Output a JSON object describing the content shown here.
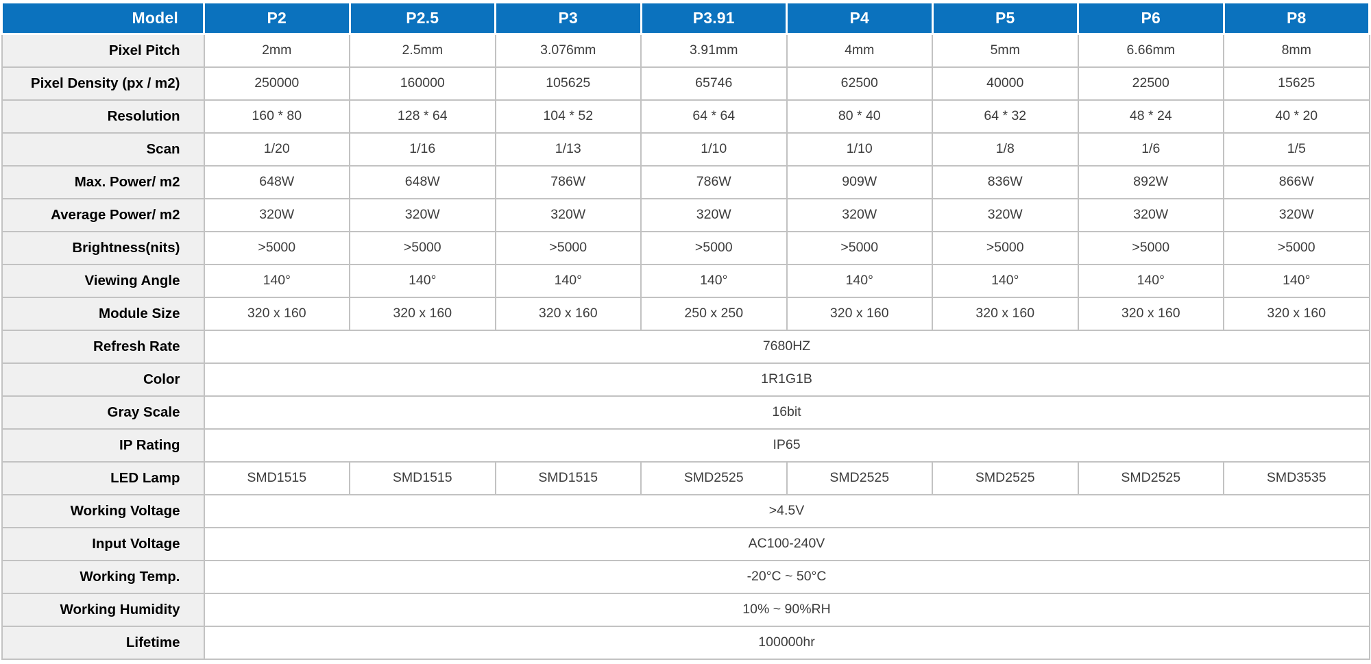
{
  "colors": {
    "header_bg": "#0b72be",
    "header_text": "#ffffff",
    "label_bg": "#f0f0f0",
    "grid_line": "#c2c2c2",
    "label_text": "#000000",
    "value_text": "#3d3d3d",
    "page_bg": "#ffffff"
  },
  "table": {
    "header": {
      "label": "Model",
      "models": [
        "P2",
        "P2.5",
        "P3",
        "P3.91",
        "P4",
        "P5",
        "P6",
        "P8"
      ]
    },
    "rows": [
      {
        "label": "Pixel Pitch",
        "values": [
          "2mm",
          "2.5mm",
          "3.076mm",
          "3.91mm",
          "4mm",
          "5mm",
          "6.66mm",
          "8mm"
        ]
      },
      {
        "label": "Pixel Density (px / m2)",
        "values": [
          "250000",
          "160000",
          "105625",
          "65746",
          "62500",
          "40000",
          "22500",
          "15625"
        ]
      },
      {
        "label": "Resolution",
        "values": [
          "160 * 80",
          "128 * 64",
          "104 * 52",
          "64 * 64",
          "80 * 40",
          "64 * 32",
          "48 * 24",
          "40 * 20"
        ]
      },
      {
        "label": "Scan",
        "values": [
          "1/20",
          "1/16",
          "1/13",
          "1/10",
          "1/10",
          "1/8",
          "1/6",
          "1/5"
        ]
      },
      {
        "label": "Max. Power/ m2",
        "values": [
          "648W",
          "648W",
          "786W",
          "786W",
          "909W",
          "836W",
          "892W",
          "866W"
        ]
      },
      {
        "label": "Average Power/ m2",
        "values": [
          "320W",
          "320W",
          "320W",
          "320W",
          "320W",
          "320W",
          "320W",
          "320W"
        ]
      },
      {
        "label": "Brightness(nits)",
        "values": [
          ">5000",
          ">5000",
          ">5000",
          ">5000",
          ">5000",
          ">5000",
          ">5000",
          ">5000"
        ]
      },
      {
        "label": "Viewing Angle",
        "values": [
          "140°",
          "140°",
          "140°",
          "140°",
          "140°",
          "140°",
          "140°",
          "140°"
        ]
      },
      {
        "label": "Module Size",
        "values": [
          "320 x 160",
          "320 x 160",
          "320 x 160",
          "250 x 250",
          "320 x 160",
          "320 x 160",
          "320 x 160",
          "320 x 160"
        ]
      },
      {
        "label": "Refresh Rate",
        "span": true,
        "value": "7680HZ"
      },
      {
        "label": "Color",
        "span": true,
        "value": "1R1G1B"
      },
      {
        "label": "Gray Scale",
        "span": true,
        "value": "16bit"
      },
      {
        "label": "IP Rating",
        "span": true,
        "value": "IP65"
      },
      {
        "label": "LED Lamp",
        "values": [
          "SMD1515",
          "SMD1515",
          "SMD1515",
          "SMD2525",
          "SMD2525",
          "SMD2525",
          "SMD2525",
          "SMD3535"
        ]
      },
      {
        "label": "Working Voltage",
        "span": true,
        "value": ">4.5V"
      },
      {
        "label": "Input Voltage",
        "span": true,
        "value": "AC100-240V"
      },
      {
        "label": "Working Temp.",
        "span": true,
        "value": "-20°C ~ 50°C"
      },
      {
        "label": "Working Humidity",
        "span": true,
        "value": "10% ~ 90%RH"
      },
      {
        "label": "Lifetime",
        "span": true,
        "value": "100000hr"
      }
    ]
  }
}
